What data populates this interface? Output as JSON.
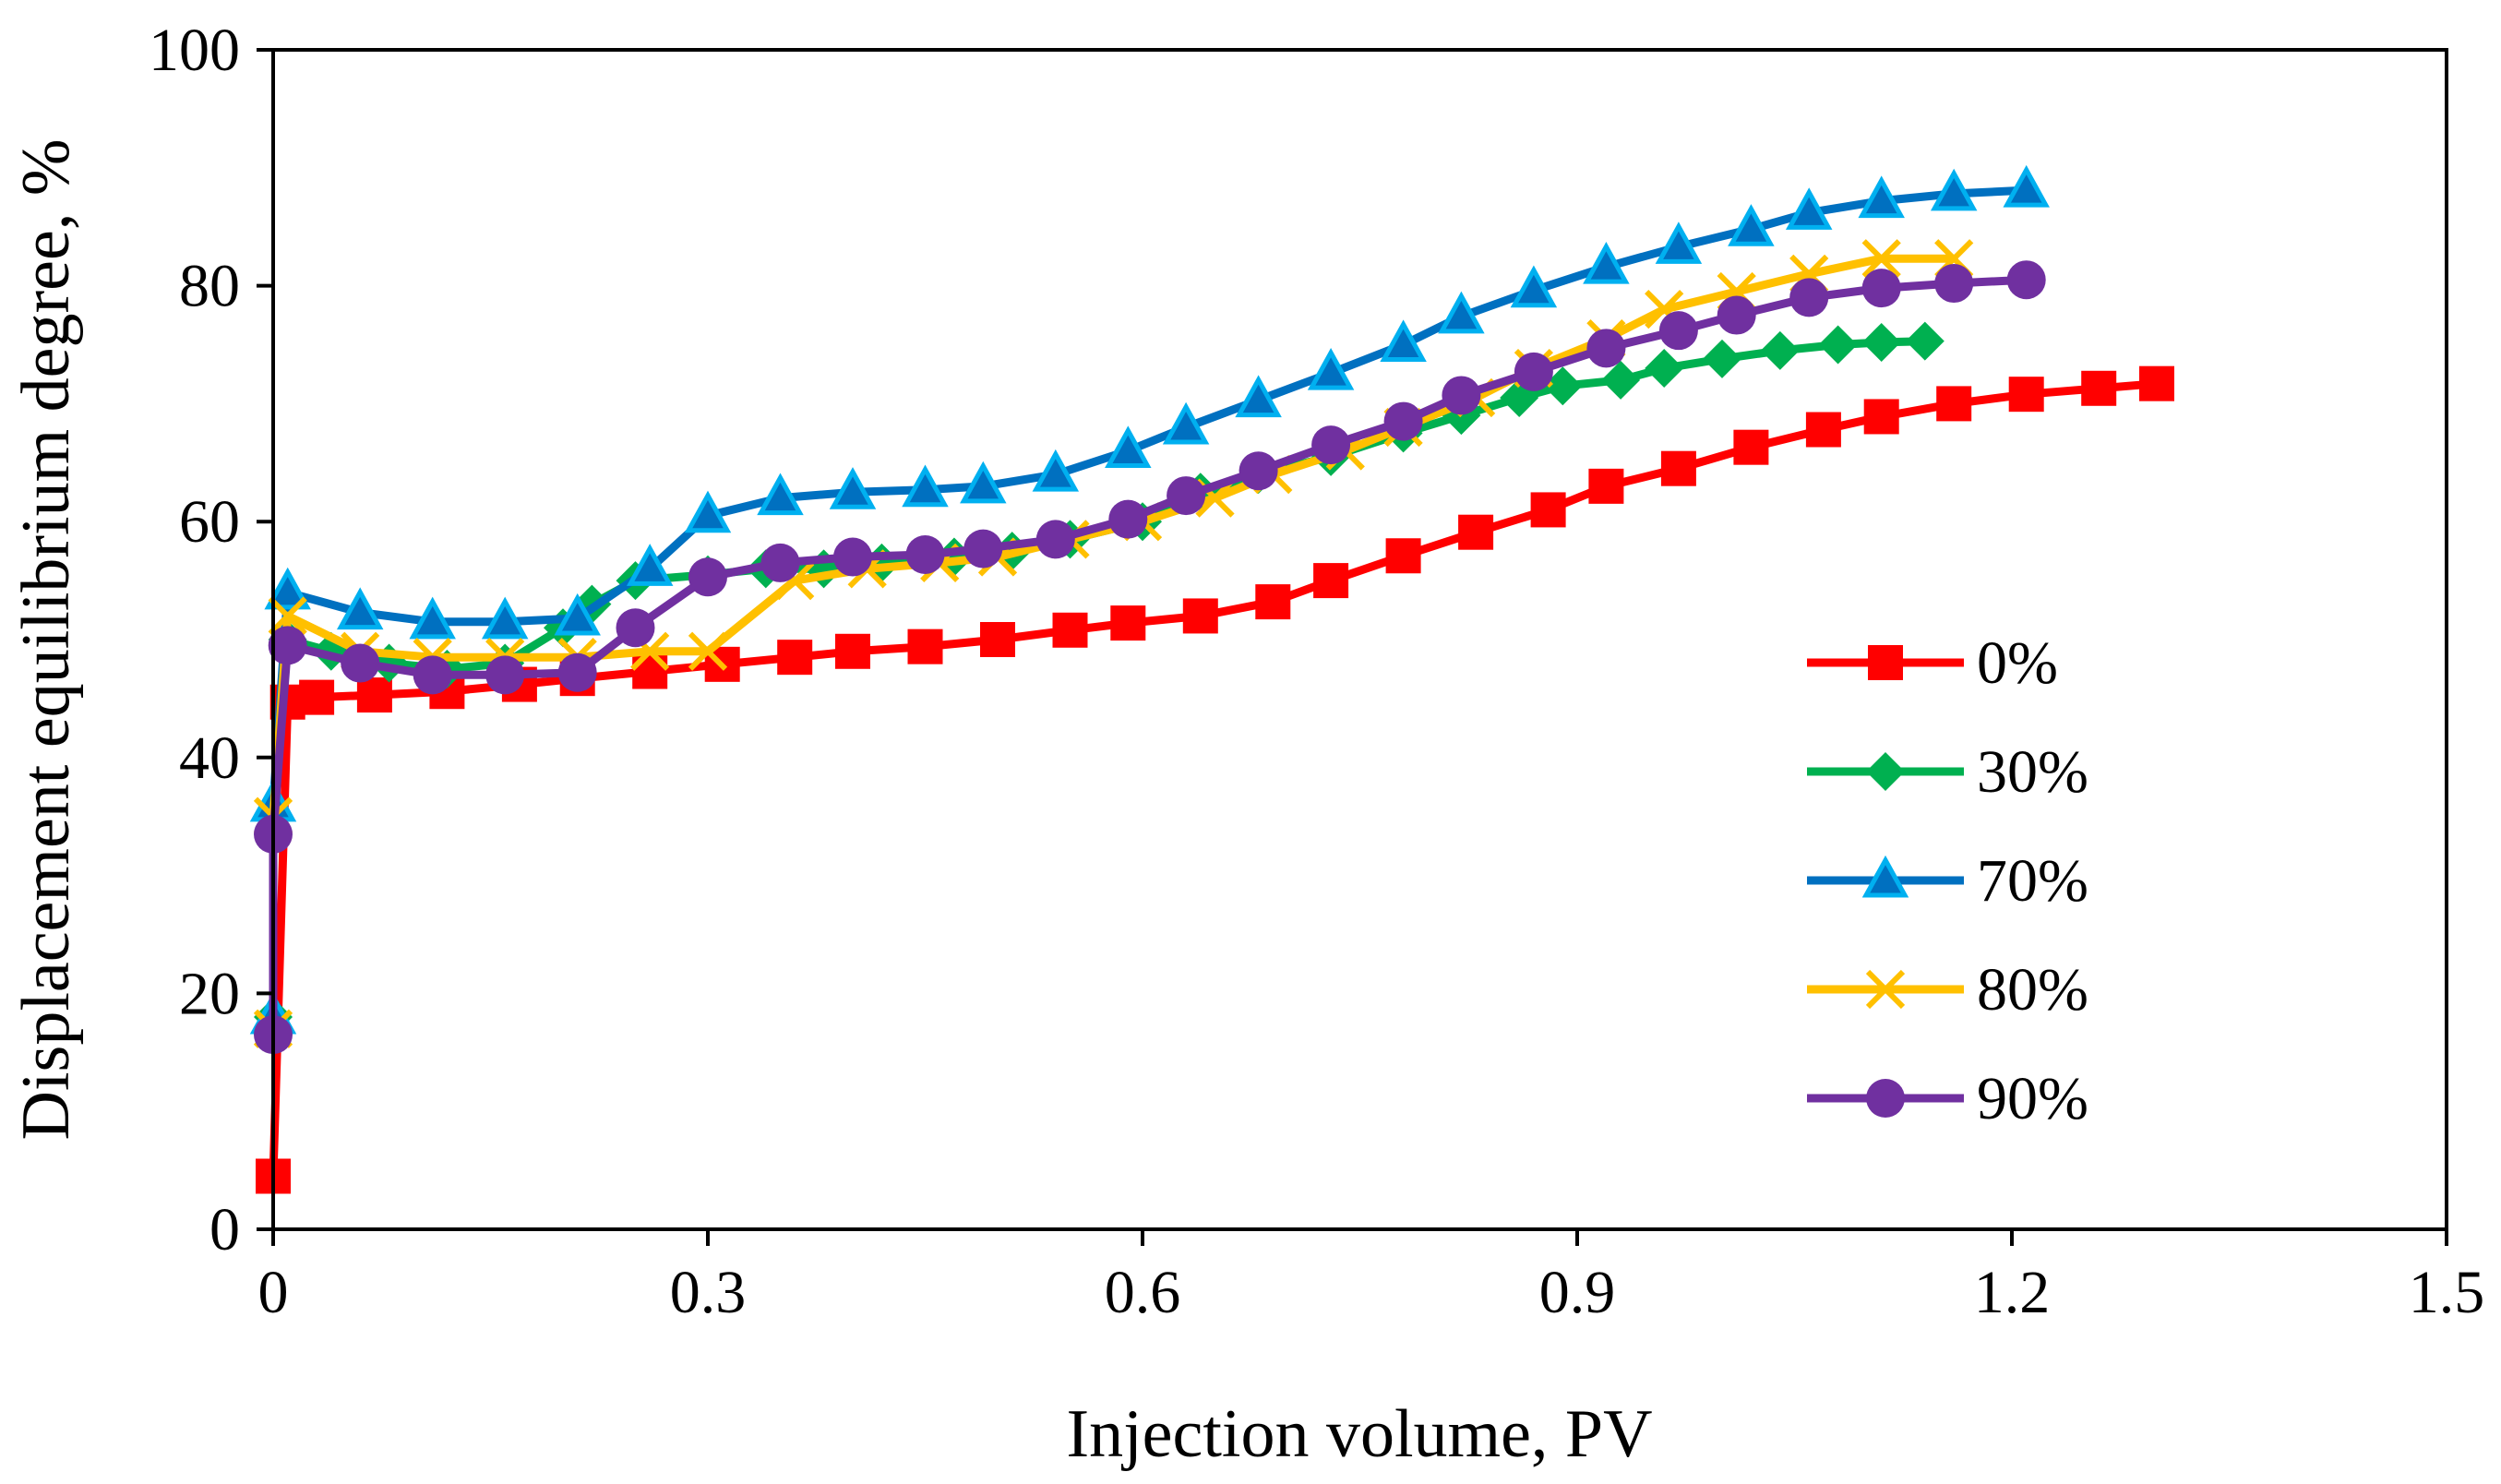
{
  "chart_data": {
    "type": "line",
    "title": "",
    "xlabel": "Injection volume, PV",
    "ylabel": "Displacement equilibrium degree, %",
    "xlim": [
      0,
      1.5
    ],
    "ylim": [
      0,
      100
    ],
    "xticks": [
      0,
      0.3,
      0.6,
      0.9,
      1.2,
      1.5
    ],
    "xtick_labels": [
      "0",
      "0.3",
      "0.6",
      "0.9",
      "1.2",
      "1.5"
    ],
    "yticks": [
      0,
      20,
      40,
      60,
      80,
      100
    ],
    "ytick_labels": [
      "0",
      "20",
      "40",
      "60",
      "80",
      "100"
    ],
    "grid": false,
    "legend_position": "right",
    "series": [
      {
        "name": "0%",
        "color": "#ff0000",
        "marker": "square",
        "x": [
          0.0,
          0.01,
          0.03,
          0.07,
          0.12,
          0.17,
          0.21,
          0.26,
          0.31,
          0.36,
          0.4,
          0.45,
          0.5,
          0.55,
          0.59,
          0.64,
          0.69,
          0.73,
          0.78,
          0.83,
          0.88,
          0.92,
          0.97,
          1.02,
          1.07,
          1.11,
          1.16,
          1.21,
          1.26,
          1.3
        ],
        "y": [
          4.5,
          44.7,
          45.1,
          45.3,
          45.6,
          46.2,
          46.7,
          47.3,
          47.9,
          48.5,
          49.0,
          49.4,
          50.0,
          50.8,
          51.4,
          52.0,
          53.2,
          55.0,
          57.1,
          59.1,
          61.0,
          63.0,
          64.5,
          66.3,
          67.8,
          68.9,
          70.0,
          70.8,
          71.3,
          71.7
        ]
      },
      {
        "name": "30%",
        "color": "#00b050",
        "marker": "diamond",
        "x": [
          0.0,
          0.0,
          0.01,
          0.04,
          0.08,
          0.12,
          0.16,
          0.2,
          0.22,
          0.25,
          0.3,
          0.34,
          0.38,
          0.42,
          0.47,
          0.51,
          0.55,
          0.6,
          0.64,
          0.68,
          0.73,
          0.78,
          0.82,
          0.86,
          0.89,
          0.93,
          0.96,
          1.0,
          1.04,
          1.08,
          1.11,
          1.14
        ],
        "y": [
          18.0,
          35.0,
          50.0,
          49.0,
          48.0,
          47.5,
          48.0,
          51.0,
          53.0,
          55.0,
          55.5,
          56.0,
          56.0,
          56.5,
          57.0,
          57.5,
          58.5,
          60.0,
          62.5,
          64.0,
          65.5,
          67.5,
          69.0,
          70.5,
          71.5,
          72.0,
          73.0,
          73.8,
          74.5,
          75.0,
          75.2,
          75.3
        ]
      },
      {
        "name": "70%",
        "color": "#0070c0",
        "marker": "triangle",
        "x": [
          0.0,
          0.0,
          0.01,
          0.06,
          0.11,
          0.16,
          0.21,
          0.26,
          0.3,
          0.35,
          0.4,
          0.45,
          0.49,
          0.54,
          0.59,
          0.63,
          0.68,
          0.73,
          0.78,
          0.82,
          0.87,
          0.92,
          0.97,
          1.02,
          1.06,
          1.11,
          1.16,
          1.21
        ],
        "y": [
          18.0,
          36.0,
          54.0,
          52.3,
          51.5,
          51.5,
          51.8,
          56.0,
          60.5,
          62.0,
          62.5,
          62.7,
          63.0,
          64.0,
          66.0,
          68.0,
          70.3,
          72.6,
          75.0,
          77.4,
          79.6,
          81.6,
          83.3,
          84.8,
          86.2,
          87.2,
          87.8,
          88.1
        ]
      },
      {
        "name": "80%",
        "color": "#ffc000",
        "marker": "x",
        "x": [
          0.0,
          0.0,
          0.01,
          0.06,
          0.11,
          0.16,
          0.21,
          0.26,
          0.3,
          0.36,
          0.41,
          0.46,
          0.5,
          0.55,
          0.6,
          0.65,
          0.69,
          0.74,
          0.78,
          0.83,
          0.87,
          0.92,
          0.96,
          1.01,
          1.06,
          1.11,
          1.16
        ],
        "y": [
          17.0,
          35.0,
          52.0,
          49.0,
          48.5,
          48.5,
          48.5,
          49.0,
          49.0,
          55.0,
          56.0,
          56.5,
          57.0,
          58.5,
          60.0,
          62.0,
          64.0,
          66.0,
          68.0,
          70.5,
          73.0,
          75.5,
          78.0,
          79.5,
          81.0,
          82.3,
          82.3
        ]
      },
      {
        "name": "90%",
        "color": "#7030a0",
        "marker": "circle",
        "x": [
          0.0,
          0.0,
          0.01,
          0.06,
          0.11,
          0.16,
          0.21,
          0.25,
          0.3,
          0.35,
          0.4,
          0.45,
          0.49,
          0.54,
          0.59,
          0.63,
          0.68,
          0.73,
          0.78,
          0.82,
          0.87,
          0.92,
          0.97,
          1.01,
          1.06,
          1.11,
          1.16,
          1.21
        ],
        "y": [
          16.5,
          33.5,
          49.5,
          48.0,
          47.0,
          47.0,
          47.2,
          51.0,
          55.3,
          56.5,
          57.0,
          57.2,
          57.7,
          58.5,
          60.2,
          62.2,
          64.3,
          66.5,
          68.5,
          70.7,
          72.7,
          74.7,
          76.2,
          77.5,
          79.0,
          79.8,
          80.2,
          80.5
        ]
      }
    ]
  }
}
